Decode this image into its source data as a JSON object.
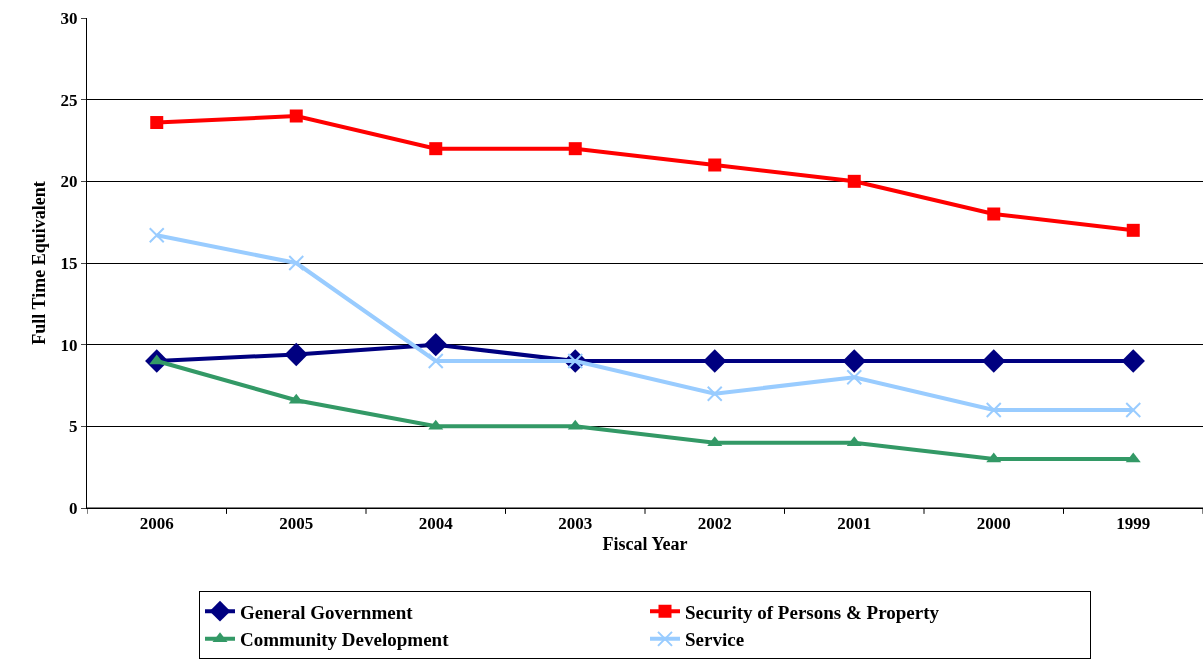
{
  "chart_data": {
    "type": "line",
    "xlabel": "Fiscal Year",
    "ylabel": "Full Time Equivalent",
    "categories": [
      "2006",
      "2005",
      "2004",
      "2003",
      "2002",
      "2001",
      "2000",
      "1999"
    ],
    "series": [
      {
        "name": "General Government",
        "color": "#000080",
        "marker": "diamond",
        "values": [
          9,
          9.4,
          10,
          9,
          9,
          9,
          9,
          9
        ]
      },
      {
        "name": "Security of Persons & Property",
        "color": "#ff0000",
        "marker": "square",
        "values": [
          23.6,
          24,
          22,
          22,
          21,
          20,
          18,
          17
        ]
      },
      {
        "name": "Community Development",
        "color": "#339966",
        "marker": "triangle",
        "values": [
          9,
          6.6,
          5,
          5,
          4,
          4,
          3,
          3
        ]
      },
      {
        "name": "Service",
        "color": "#99ccff",
        "marker": "cross",
        "values": [
          16.7,
          15,
          9,
          9,
          7,
          8,
          6,
          6
        ]
      }
    ],
    "ylim": [
      0,
      30
    ],
    "yticks": [
      0,
      5,
      10,
      15,
      20,
      25,
      30
    ],
    "grid": "y",
    "legend": "bottom",
    "line_style": "solid"
  }
}
